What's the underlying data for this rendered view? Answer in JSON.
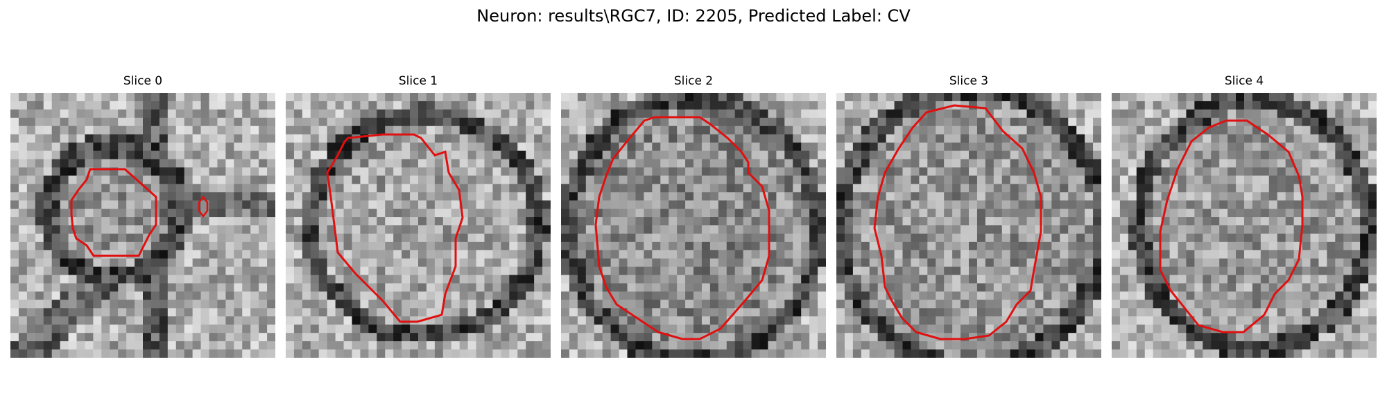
{
  "figure": {
    "title": "Neuron: results\\RGC7, ID: 2205, Predicted Label: CV"
  },
  "panels": [
    {
      "title": "Slice 0",
      "contour_color": "#e01010"
    },
    {
      "title": "Slice 1",
      "contour_color": "#e01010"
    },
    {
      "title": "Slice 2",
      "contour_color": "#e01010"
    },
    {
      "title": "Slice 3",
      "contour_color": "#e01010"
    },
    {
      "title": "Slice 4",
      "contour_color": "#e01010"
    }
  ]
}
